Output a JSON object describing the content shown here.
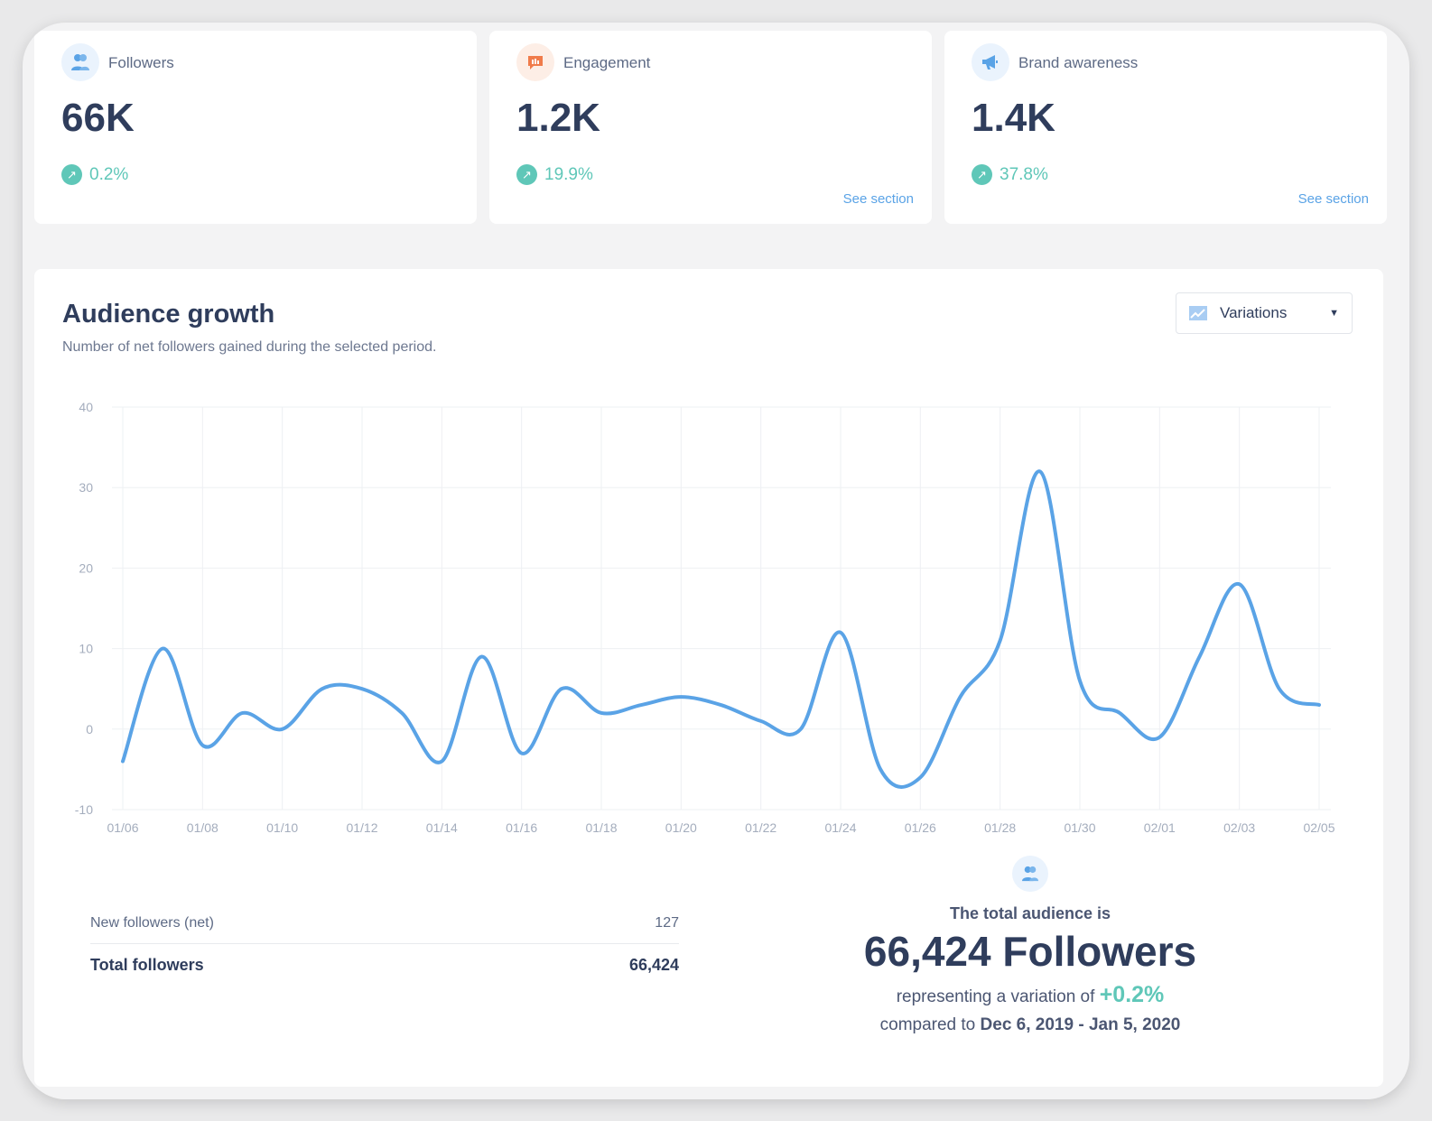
{
  "cards": [
    {
      "label": "Followers",
      "value": "66K",
      "change": "0.2%",
      "icon": "followers-icon"
    },
    {
      "label": "Engagement",
      "value": "1.2K",
      "change": "19.9%",
      "link": "See section",
      "icon": "engagement-icon"
    },
    {
      "label": "Brand awareness",
      "value": "1.4K",
      "change": "37.8%",
      "link": "See section",
      "icon": "megaphone-icon"
    }
  ],
  "section": {
    "title": "Audience growth",
    "subtitle": "Number of net followers gained during the selected period.",
    "dropdown": "Variations"
  },
  "chart_data": {
    "type": "line",
    "title": "Audience growth",
    "xlabel": "",
    "ylabel": "",
    "ylim": [
      -10,
      40
    ],
    "yticks": [
      40,
      30,
      20,
      10,
      0,
      -10
    ],
    "xticks": [
      "01/06",
      "01/08",
      "01/10",
      "01/12",
      "01/14",
      "01/16",
      "01/18",
      "01/20",
      "01/22",
      "01/24",
      "01/26",
      "01/28",
      "01/30",
      "02/01",
      "02/03",
      "02/05"
    ],
    "series": [
      {
        "name": "New followers (net)",
        "color": "#5aa3e6",
        "values": [
          -4,
          10,
          -2,
          2,
          0,
          5,
          5,
          2,
          -4,
          9,
          -3,
          5,
          2,
          3,
          4,
          3,
          1,
          0,
          12,
          -5,
          -6,
          4,
          11,
          32,
          6,
          2,
          -1,
          9,
          18,
          5,
          3
        ]
      }
    ]
  },
  "summary": {
    "rows": [
      {
        "label": "New followers (net)",
        "value": "127"
      },
      {
        "label": "Total followers",
        "value": "66,424"
      }
    ]
  },
  "total": {
    "heading": "The total audience is",
    "value": "66,424 Followers",
    "line1": "representing a variation of",
    "variation": "+0.2%",
    "line2": "compared to",
    "period": "Dec 6, 2019 - Jan 5, 2020"
  }
}
